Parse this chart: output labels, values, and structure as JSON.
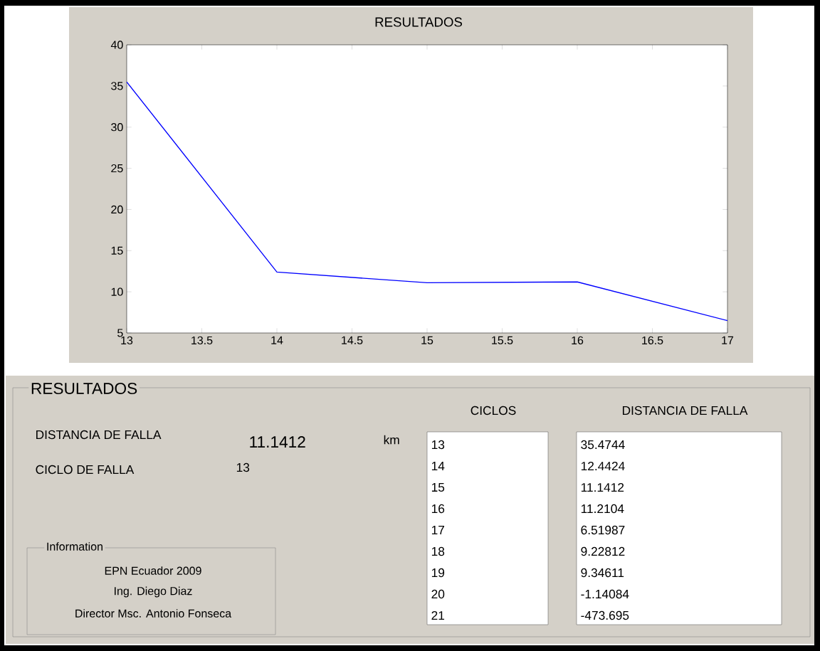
{
  "chart_data": {
    "type": "line",
    "title": "RESULTADOS",
    "x": [
      13,
      14,
      15,
      16,
      17
    ],
    "series": [
      {
        "color": "#0000ff",
        "values": [
          35.5,
          12.4,
          11.1,
          11.2,
          6.5
        ]
      }
    ],
    "xlim": [
      13,
      17
    ],
    "ylim": [
      5,
      40
    ],
    "xticks": [
      13,
      13.5,
      14,
      14.5,
      15,
      15.5,
      16,
      16.5,
      17
    ],
    "yticks": [
      5,
      10,
      15,
      20,
      25,
      30,
      35,
      40
    ],
    "grid": false,
    "marker": "none",
    "line_style": "solid",
    "annotations": [
      "RESULTADOS",
      "DISTANCIA DE FALLA",
      "11.1412",
      "km",
      "CICLO DE FALLA",
      "13",
      "CICLOS",
      "DISTANCIA DE FALLA",
      "13",
      "14",
      "15",
      "16",
      "17",
      "18",
      "19",
      "20",
      "21",
      "35.4744",
      "12.4424",
      "11.1412",
      "11.2104",
      "6.51987",
      "9.22812",
      "9.34611",
      "-1.14084",
      "-473.695",
      "Information",
      "EPN Ecuador 2009",
      "Ing. Diego Diaz",
      "Director Msc. Antonio Fonseca"
    ]
  }
}
